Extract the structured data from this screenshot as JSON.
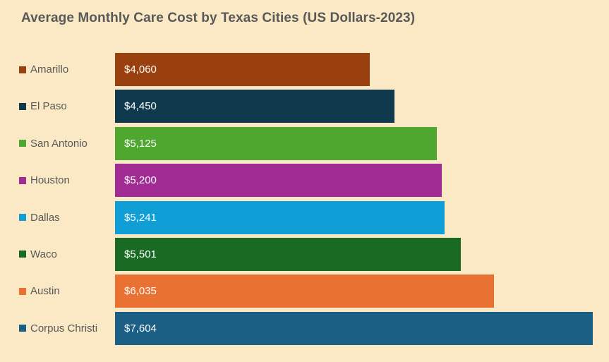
{
  "page": {
    "background": "#FAE9C4"
  },
  "chart_data": {
    "type": "bar",
    "orientation": "horizontal",
    "title": "Average Monthly Care Cost by Texas Cities (US Dollars-2023)",
    "categories": [
      "Amarillo",
      "El Paso",
      "San Antonio",
      "Houston",
      "Dallas",
      "Waco",
      "Austin",
      "Corpus Christi"
    ],
    "values": [
      4060,
      4450,
      5125,
      5200,
      5241,
      5501,
      6035,
      7604
    ],
    "value_labels": [
      "$4,060",
      "$4,450",
      "$5,125",
      "$5,200",
      "$5,241",
      "$5,501",
      "$6,035",
      "$7,604"
    ],
    "colors": [
      "#9A400F",
      "#0F3A4E",
      "#4EA72E",
      "#A02B93",
      "#0F9ED5",
      "#196B24",
      "#E97132",
      "#1B5F85"
    ],
    "xlim": [
      0,
      7604
    ],
    "grid": false,
    "legend_position": "category-markers-left",
    "title_color": "#595959",
    "label_color": "#595959",
    "bar_value_color": "#FFFFFF"
  }
}
